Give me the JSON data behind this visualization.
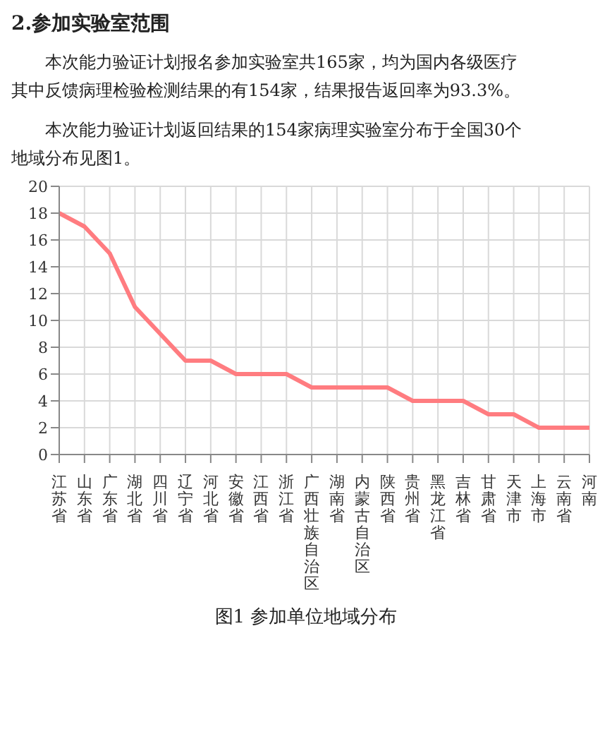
{
  "chart_data": {
    "type": "line",
    "title": "2.参加实验室范围",
    "annotations": [
      "本次能力验证计划报名参加实验室共165家，均为国内各级医疗",
      "其中反馈病理检验检测结果的有154家，结果报告返回率为93.3%。",
      "本次能力验证计划返回结果的154家病理实验室分布于全国30个",
      "地域分布见图1。",
      "图1  参加单位地域分布"
    ],
    "categories": [
      "江苏省",
      "山东省",
      "广东省",
      "湖北省",
      "四川省",
      "辽宁省",
      "河北省",
      "安徽省",
      "江西省",
      "浙江省",
      "广西壮族自治区",
      "湖南省",
      "内蒙古自治区",
      "陕西省",
      "贵州省",
      "黑龙江省",
      "吉林省",
      "甘肃省",
      "天津市",
      "上海市",
      "云南省",
      "河南"
    ],
    "series": [
      {
        "color": "#ff7c80",
        "values": [
          18,
          17,
          15,
          11,
          9,
          7,
          7,
          6,
          6,
          6,
          5,
          5,
          5,
          5,
          4,
          4,
          4,
          3,
          3,
          2,
          2,
          2
        ]
      }
    ],
    "ylim": [
      0,
      20
    ],
    "yticks": [
      0,
      2,
      4,
      6,
      8,
      10,
      12,
      14,
      16,
      18,
      20
    ],
    "grid": true,
    "marker": "none",
    "line_style": "solid",
    "legend": false
  }
}
